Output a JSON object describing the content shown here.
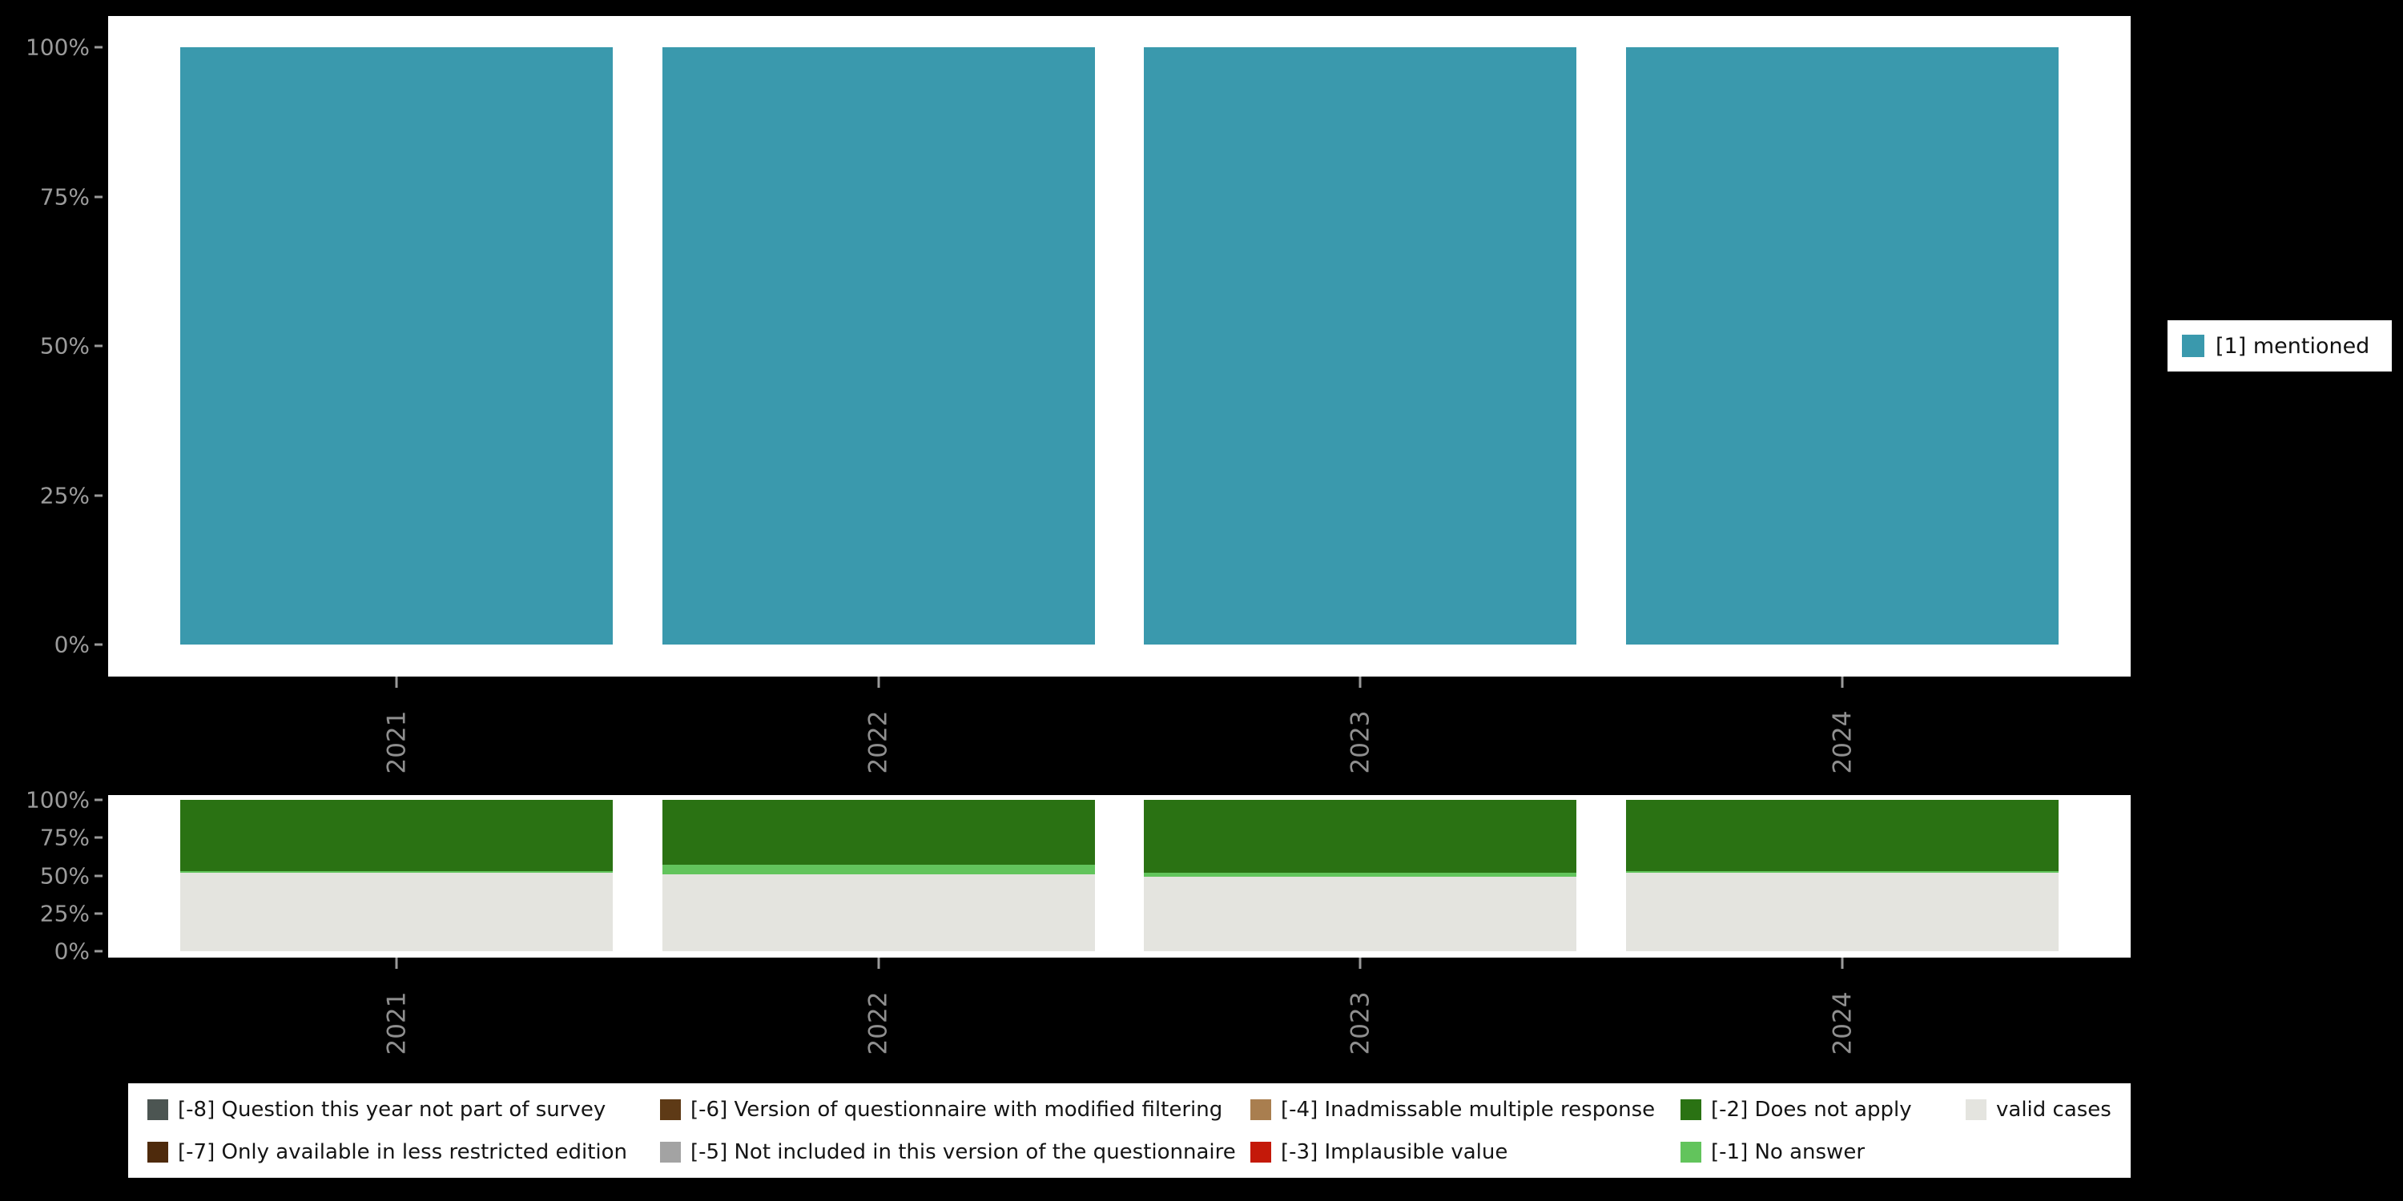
{
  "background": "#000000",
  "panel_background": "#ffffff",
  "axis_text_color": "#8f8f8f",
  "legend_right": {
    "label": "[1] mentioned",
    "color": "#3a99ad"
  },
  "legend_bottom": {
    "rows": [
      [
        {
          "label": "[-8] Question this year not part of survey",
          "color": "#4c5552"
        },
        {
          "label": "[-6] Version of questionnaire with modified filtering",
          "color": "#5e3a16"
        },
        {
          "label": "[-4] Inadmissable multiple response",
          "color": "#a97e4f"
        },
        {
          "label": "[-2] Does not apply",
          "color": "#2a7213"
        },
        {
          "label": "valid cases",
          "color": "#e4e4df"
        }
      ],
      [
        {
          "label": "[-7] Only available in less restricted edition",
          "color": "#4e2a0c"
        },
        {
          "label": "[-5] Not included in this version of the questionnaire",
          "color": "#a3a3a3"
        },
        {
          "label": "[-3] Implausible value",
          "color": "#c41909"
        },
        {
          "label": "[-1] No answer",
          "color": "#62c45c"
        }
      ]
    ]
  },
  "chart_data": [
    {
      "type": "bar",
      "stacked": true,
      "percent": true,
      "title": "",
      "categories": [
        "2021",
        "2022",
        "2023",
        "2024"
      ],
      "series": [
        {
          "name": "[1] mentioned",
          "color": "#3a99ad",
          "values": [
            100,
            100,
            100,
            100
          ]
        }
      ],
      "ylim": [
        0,
        100
      ],
      "yticks": [
        {
          "v": 0,
          "label": "0%"
        },
        {
          "v": 25,
          "label": "25%"
        },
        {
          "v": 50,
          "label": "50%"
        },
        {
          "v": 75,
          "label": "75%"
        },
        {
          "v": 100,
          "label": "100%"
        }
      ],
      "grid": false,
      "legend_position": "right"
    },
    {
      "type": "bar",
      "stacked": true,
      "percent": true,
      "title": "",
      "categories": [
        "2021",
        "2022",
        "2023",
        "2024"
      ],
      "series": [
        {
          "name": "valid cases",
          "color": "#e4e4df",
          "values": [
            52,
            51,
            49,
            52
          ]
        },
        {
          "name": "[-1] No answer",
          "color": "#62c45c",
          "values": [
            1,
            6,
            3,
            1
          ]
        },
        {
          "name": "[-2] Does not apply",
          "color": "#2a7213",
          "values": [
            47,
            43,
            48,
            47
          ]
        }
      ],
      "ylim": [
        0,
        100
      ],
      "yticks": [
        {
          "v": 0,
          "label": "0%"
        },
        {
          "v": 25,
          "label": "25%"
        },
        {
          "v": 50,
          "label": "50%"
        },
        {
          "v": 75,
          "label": "75%"
        },
        {
          "v": 100,
          "label": "100%"
        }
      ],
      "grid": false,
      "legend_position": "bottom"
    }
  ]
}
